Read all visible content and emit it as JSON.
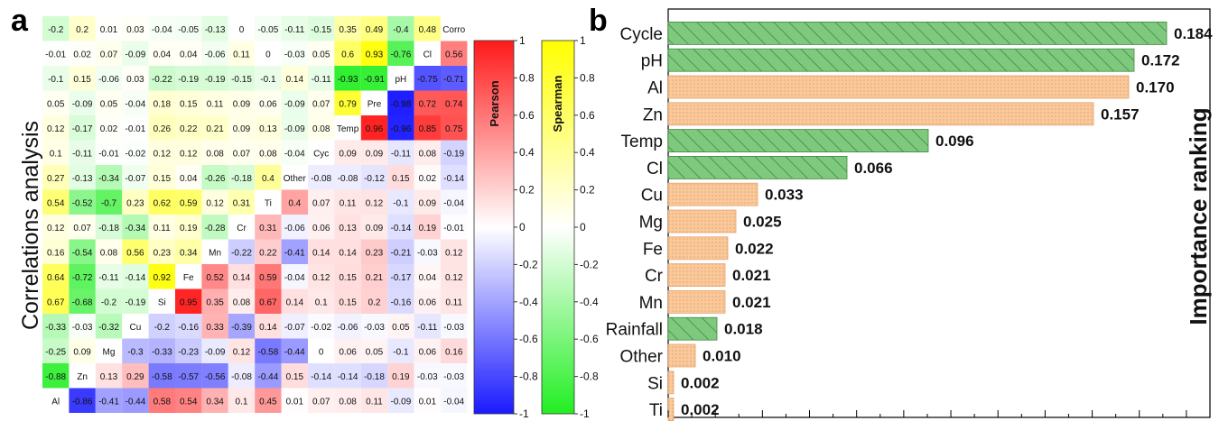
{
  "panel_a": {
    "label": "a",
    "ylabel": "Correlations analysis"
  },
  "panel_b": {
    "label": "b",
    "ylabel": "Importance ranking"
  },
  "colorbars": [
    {
      "title": "Pearson",
      "ticks": [
        "1",
        "0.8",
        "0.6",
        "0.4",
        "0.2",
        "0",
        "-0.2",
        "-0.4",
        "-0.6",
        "-0.8",
        "-1"
      ]
    },
    {
      "title": "Spearman",
      "ticks": [
        "1",
        "0.8",
        "0.6",
        "0.4",
        "0.2",
        "0",
        "-0.2",
        "-0.4",
        "-0.6",
        "-0.8",
        "-1"
      ]
    }
  ],
  "colors": {
    "pearson_pos": "#ff1a1a",
    "pearson_neg": "#1a1aff",
    "spearman_pos": "#ffff00",
    "spearman_neg": "#22ee22",
    "bar_green": "#7fc97f",
    "bar_orange": "#f9c89b"
  },
  "chart_data": [
    {
      "type": "heatmap",
      "title": "",
      "diagonal_labels": [
        "Corro",
        "Cl",
        "pH",
        "Pre",
        "Temp",
        "Cyc",
        "Other",
        "Ti",
        "Cr",
        "Mn",
        "Fe",
        "Si",
        "Cu",
        "Mg",
        "Zn",
        "Al"
      ],
      "cells": [
        [
          "-0.2",
          "0.2",
          "0.01",
          "0.03",
          "-0.04",
          "-0.05",
          "-0.13",
          "0",
          "-0.05",
          "-0.11",
          "-0.15",
          "0.35",
          "0.49",
          "-0.4",
          "0.48",
          ""
        ],
        [
          "-0.01",
          "0.02",
          "0.07",
          "-0.09",
          "0.04",
          "0.04",
          "-0.06",
          "0.11",
          "0",
          "-0.03",
          "0.05",
          "0.6",
          "0.93",
          "-0.76",
          "",
          "0.56"
        ],
        [
          "-0.1",
          "0.15",
          "-0.06",
          "0.03",
          "-0.22",
          "-0.19",
          "-0.19",
          "-0.15",
          "-0.1",
          "0.14",
          "-0.11",
          "-0.93",
          "-0.91",
          "",
          "-0.75",
          "-0.71"
        ],
        [
          "0.05",
          "-0.09",
          "0.05",
          "-0.04",
          "0.18",
          "0.15",
          "0.11",
          "0.09",
          "0.06",
          "-0.09",
          "0.07",
          "0.79",
          "",
          "-0.98",
          "0.72",
          "0.74"
        ],
        [
          "0.12",
          "-0.17",
          "0.02",
          "-0.01",
          "0.26",
          "0.22",
          "0.21",
          "0.09",
          "0.13",
          "-0.09",
          "0.08",
          "",
          "0.96",
          "-0.96",
          "0.85",
          "0.75"
        ],
        [
          "0.1",
          "-0.11",
          "-0.01",
          "-0.02",
          "0.12",
          "0.12",
          "0.08",
          "0.07",
          "0.08",
          "-0.04",
          "",
          "0.09",
          "0.09",
          "-0.11",
          "0.08",
          "-0.19"
        ],
        [
          "0.27",
          "-0.13",
          "-0.34",
          "-0.07",
          "0.15",
          "0.04",
          "-0.26",
          "-0.18",
          "0.4",
          "",
          "-0.08",
          "-0.08",
          "-0.12",
          "0.15",
          "0.02",
          "-0.14"
        ],
        [
          "0.54",
          "-0.52",
          "-0.7",
          "0.23",
          "0.62",
          "0.59",
          "0.12",
          "0.31",
          "",
          "0.4",
          "0.07",
          "0.11",
          "0.12",
          "-0.1",
          "0.09",
          "-0.04"
        ],
        [
          "0.12",
          "0.07",
          "-0.18",
          "-0.34",
          "0.11",
          "0.19",
          "-0.28",
          "",
          "0.31",
          "-0.06",
          "0.06",
          "0.13",
          "0.09",
          "-0.14",
          "0.19",
          "-0.01"
        ],
        [
          "0.16",
          "-0.54",
          "0.08",
          "0.56",
          "0.23",
          "0.34",
          "",
          "-0.22",
          "0.22",
          "-0.41",
          "0.14",
          "0.14",
          "0.23",
          "-0.21",
          "-0.03",
          "0.12"
        ],
        [
          "0.64",
          "-0.72",
          "-0.11",
          "-0.14",
          "0.92",
          "",
          "0.52",
          "0.14",
          "0.59",
          "-0.04",
          "0.12",
          "0.15",
          "0.21",
          "-0.17",
          "0.04",
          "0.12"
        ],
        [
          "0.67",
          "-0.68",
          "-0.2",
          "-0.19",
          "",
          "0.95",
          "0.35",
          "0.08",
          "0.67",
          "0.14",
          "0.1",
          "0.15",
          "0.2",
          "-0.16",
          "0.06",
          "0.11"
        ],
        [
          "-0.33",
          "-0.03",
          "-0.32",
          "",
          "-0.2",
          "-0.16",
          "0.33",
          "-0.39",
          "0.14",
          "-0.07",
          "-0.02",
          "-0.06",
          "-0.03",
          "0.05",
          "-0.11",
          "-0.03"
        ],
        [
          "-0.25",
          "0.09",
          "",
          "-0.3",
          "-0.33",
          "-0.23",
          "-0.09",
          "0.12",
          "-0.58",
          "-0.44",
          "0",
          "0.06",
          "0.05",
          "-0.1",
          "0.06",
          "0.16"
        ],
        [
          "-0.88",
          "",
          "0.13",
          "0.29",
          "-0.58",
          "-0.57",
          "-0.56",
          "-0.08",
          "-0.44",
          "0.15",
          "-0.14",
          "-0.14",
          "-0.18",
          "0.19",
          "-0.03",
          "-0.03"
        ],
        [
          "",
          "-0.86",
          "-0.41",
          "-0.44",
          "0.58",
          "0.54",
          "0.34",
          "0.1",
          "0.45",
          "0.01",
          "0.07",
          "0.08",
          "0.11",
          "-0.09",
          "0.01",
          "-0.04"
        ]
      ],
      "upper_triangle": "Pearson",
      "lower_triangle": "Spearman",
      "vmin": -1,
      "vmax": 1
    },
    {
      "type": "bar",
      "orientation": "horizontal",
      "title": "",
      "ylabel": "Importance ranking",
      "categories": [
        "Cycle",
        "pH",
        "Al",
        "Zn",
        "Temp",
        "Cl",
        "Cu",
        "Mg",
        "Fe",
        "Cr",
        "Mn",
        "Rainfall",
        "Other",
        "Si",
        "Ti"
      ],
      "values": [
        0.184,
        0.172,
        0.17,
        0.157,
        0.096,
        0.066,
        0.033,
        0.025,
        0.022,
        0.021,
        0.021,
        0.018,
        0.01,
        0.002,
        0.002
      ],
      "value_labels": [
        "0.184",
        "0.172",
        "0.170",
        "0.157",
        "0.096",
        "0.066",
        "0.033",
        "0.025",
        "0.022",
        "0.021",
        "0.021",
        "0.018",
        "0.010",
        "0.002",
        "0.002"
      ],
      "styles": [
        "green",
        "green",
        "orange",
        "orange",
        "green",
        "green",
        "orange",
        "orange",
        "orange",
        "orange",
        "orange",
        "green",
        "orange",
        "orange",
        "orange"
      ],
      "xlim": [
        0,
        0.2
      ],
      "grid": false
    }
  ]
}
